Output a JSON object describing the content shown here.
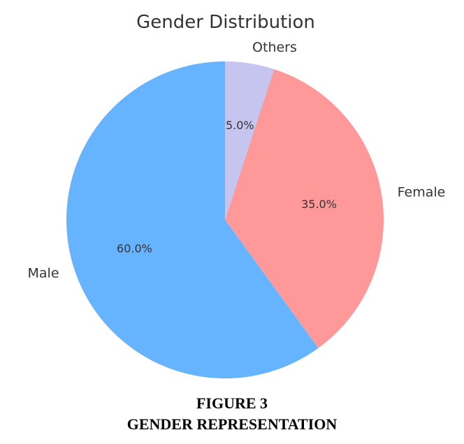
{
  "chart_data": {
    "type": "pie",
    "title": "Gender Distribution",
    "start_angle_deg": 90,
    "direction": "clockwise",
    "slices": [
      {
        "label": "Others",
        "value": 5.0,
        "pct_label": "5.0%",
        "color": "#c5c5f0"
      },
      {
        "label": "Female",
        "value": 35.0,
        "pct_label": "35.0%",
        "color": "#ff9999"
      },
      {
        "label": "Male",
        "value": 60.0,
        "pct_label": "60.0%",
        "color": "#66b3ff"
      }
    ]
  },
  "caption": {
    "figure_number": "FIGURE 3",
    "figure_title": "GENDER REPRESENTATION"
  }
}
